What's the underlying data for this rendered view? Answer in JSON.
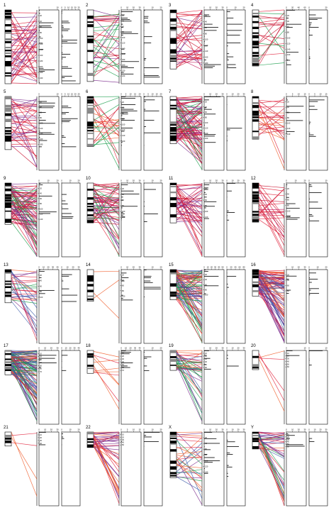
{
  "figure": {
    "panel_labels": [
      "1",
      "2",
      "3",
      "4",
      "5",
      "6",
      "7",
      "8",
      "9",
      "10",
      "11",
      "12",
      "13",
      "14",
      "15",
      "16",
      "17",
      "18",
      "19",
      "20",
      "21",
      "22",
      "X",
      "Y"
    ],
    "colors": {
      "red": "#e0203a",
      "crimson": "#c8102e",
      "orange": "#f05a28",
      "magenta": "#c2185b",
      "purple": "#7b2a8c",
      "green": "#1a9e4b",
      "blue": "#3a5ba9",
      "teal": "#2a9d8f",
      "black": "#000000"
    }
  },
  "chart_data": [
    {
      "panel": "1",
      "type": "line",
      "count_axis_1": [
        "0",
        "10"
      ],
      "count_axis_2": [
        "0",
        "5",
        "10",
        "15",
        "20",
        "25"
      ],
      "pos_ticks": [
        "20",
        "40",
        "60",
        "80",
        "100",
        "120",
        "140",
        "160",
        "180",
        "200",
        "220",
        "240"
      ],
      "links": 50,
      "palette": [
        "red",
        "crimson",
        "magenta",
        "purple"
      ],
      "rel_len": 1.0
    },
    {
      "panel": "2",
      "type": "line",
      "count_axis_1": [
        "0",
        "10",
        "20",
        "30"
      ],
      "count_axis_2": [
        "0",
        "10",
        "20"
      ],
      "pos_ticks": [
        "20",
        "40",
        "60",
        "80",
        "100",
        "120",
        "140",
        "160",
        "180",
        "200",
        "220",
        "240"
      ],
      "links": 35,
      "palette": [
        "red",
        "crimson",
        "green",
        "purple"
      ],
      "rel_len": 0.97
    },
    {
      "panel": "3",
      "type": "line",
      "count_axis_1": [
        "0",
        "10",
        "20",
        "30"
      ],
      "count_axis_2": [
        "0",
        "10",
        "20"
      ],
      "pos_ticks": [
        "20",
        "40",
        "60",
        "80",
        "100",
        "120",
        "140",
        "160",
        "180"
      ],
      "links": 40,
      "palette": [
        "red",
        "magenta",
        "purple",
        "crimson"
      ],
      "rel_len": 0.8
    },
    {
      "panel": "4",
      "type": "line",
      "count_axis_1": [
        "0",
        "20",
        "40",
        "60"
      ],
      "count_axis_2": [
        "0",
        "20"
      ],
      "pos_ticks": [
        "20",
        "40",
        "60",
        "80",
        "100",
        "120",
        "140",
        "160",
        "180"
      ],
      "links": 20,
      "palette": [
        "red",
        "crimson",
        "green"
      ],
      "rel_len": 0.76
    },
    {
      "panel": "5",
      "type": "line",
      "count_axis_1": [
        "0",
        "10"
      ],
      "count_axis_2": [
        "0",
        "5",
        "10",
        "15",
        "20",
        "25"
      ],
      "pos_ticks": [
        "20",
        "40",
        "60",
        "80",
        "100",
        "120",
        "140",
        "160",
        "180"
      ],
      "links": 40,
      "palette": [
        "red",
        "crimson",
        "purple"
      ],
      "rel_len": 0.72
    },
    {
      "panel": "6",
      "type": "line",
      "count_axis_1": [
        "0",
        "5",
        "10",
        "15",
        "20"
      ],
      "count_axis_2": [
        "0",
        "5",
        "10",
        "15",
        "20"
      ],
      "pos_ticks": [
        "20",
        "40",
        "60",
        "80",
        "100",
        "120",
        "140",
        "160"
      ],
      "links": 25,
      "palette": [
        "red",
        "crimson",
        "green",
        "orange"
      ],
      "rel_len": 0.68
    },
    {
      "panel": "7",
      "type": "line",
      "count_axis_1": [
        "0",
        "10",
        "20",
        "30"
      ],
      "count_axis_2": [
        "0",
        "10",
        "20",
        "30"
      ],
      "pos_ticks": [
        "20",
        "40",
        "60",
        "80",
        "100",
        "120",
        "140",
        "160"
      ],
      "links": 90,
      "palette": [
        "red",
        "crimson",
        "magenta",
        "purple",
        "green"
      ],
      "rel_len": 0.64
    },
    {
      "panel": "8",
      "type": "line",
      "count_axis_1": [
        "0",
        "5",
        "10",
        "15"
      ],
      "count_axis_2": [
        "0",
        "5",
        "10",
        "15"
      ],
      "pos_ticks": [
        "20",
        "40",
        "60",
        "80",
        "100",
        "120",
        "140"
      ],
      "links": 25,
      "palette": [
        "red",
        "crimson",
        "orange"
      ],
      "rel_len": 0.58
    },
    {
      "panel": "9",
      "type": "line",
      "count_axis_1": [
        "0",
        "10",
        "20"
      ],
      "count_axis_2": [
        "0",
        "10",
        "20"
      ],
      "pos_ticks": [
        "20",
        "40",
        "60",
        "80",
        "100",
        "120",
        "140"
      ],
      "links": 80,
      "palette": [
        "red",
        "crimson",
        "magenta",
        "purple",
        "green"
      ],
      "rel_len": 0.56
    },
    {
      "panel": "10",
      "type": "line",
      "count_axis_1": [
        "0",
        "10",
        "20",
        "30"
      ],
      "count_axis_2": [
        "0",
        "10",
        "20"
      ],
      "pos_ticks": [
        "20",
        "40",
        "60",
        "80",
        "100",
        "120"
      ],
      "links": 60,
      "palette": [
        "red",
        "crimson",
        "magenta",
        "purple",
        "green"
      ],
      "rel_len": 0.54
    },
    {
      "panel": "11",
      "type": "line",
      "count_axis_1": [
        "0",
        "10",
        "20",
        "30"
      ],
      "count_axis_2": [
        "0",
        "10",
        "20",
        "30"
      ],
      "pos_ticks": [
        "20",
        "40",
        "60",
        "80",
        "100",
        "120"
      ],
      "links": 45,
      "palette": [
        "red",
        "magenta",
        "purple",
        "crimson"
      ],
      "rel_len": 0.54
    },
    {
      "panel": "12",
      "type": "line",
      "count_axis_1": [
        "0",
        "10",
        "20"
      ],
      "count_axis_2": [
        "0",
        "10"
      ],
      "pos_ticks": [
        "20",
        "40",
        "60",
        "80",
        "100",
        "120"
      ],
      "links": 25,
      "palette": [
        "red",
        "crimson",
        "magenta"
      ],
      "rel_len": 0.53
    },
    {
      "panel": "13",
      "type": "line",
      "count_axis_1": [
        "0",
        "10",
        "20",
        "30",
        "40"
      ],
      "count_axis_2": [
        "0",
        "10",
        "20",
        "30"
      ],
      "pos_ticks": [
        "20",
        "40",
        "60",
        "80",
        "100"
      ],
      "links": 30,
      "palette": [
        "orange",
        "red",
        "green",
        "purple",
        "blue"
      ],
      "rel_len": 0.45
    },
    {
      "panel": "14",
      "type": "line",
      "count_axis_1": [
        "0",
        "10",
        "20",
        "30"
      ],
      "count_axis_2": [
        "0",
        "10",
        "20"
      ],
      "pos_ticks": [
        "20",
        "40",
        "60",
        "80",
        "100"
      ],
      "links": 3,
      "palette": [
        "orange",
        "red"
      ],
      "rel_len": 0.43
    },
    {
      "panel": "15",
      "type": "line",
      "count_axis_1": [
        "0",
        "10",
        "20",
        "30",
        "40",
        "50"
      ],
      "count_axis_2": [
        "0",
        "20",
        "40",
        "60",
        "80"
      ],
      "pos_ticks": [
        "20",
        "40",
        "60",
        "80",
        "100"
      ],
      "links": 90,
      "palette": [
        "green",
        "orange",
        "red",
        "purple",
        "blue"
      ],
      "rel_len": 0.41
    },
    {
      "panel": "16",
      "type": "line",
      "count_axis_1": [
        "0",
        "10",
        "20",
        "30"
      ],
      "count_axis_2": [
        "0",
        "10",
        "20"
      ],
      "pos_ticks": [
        "20",
        "40",
        "60",
        "80"
      ],
      "links": 90,
      "palette": [
        "orange",
        "red",
        "purple",
        "blue"
      ],
      "rel_len": 0.36
    },
    {
      "panel": "17",
      "type": "line",
      "count_axis_1": [
        "0",
        "10",
        "20",
        "30"
      ],
      "count_axis_2": [
        "0",
        "10",
        "20",
        "30",
        "40"
      ],
      "pos_ticks": [
        "10",
        "20",
        "30",
        "40",
        "50",
        "60",
        "70"
      ],
      "links": 110,
      "palette": [
        "orange",
        "red",
        "purple",
        "blue",
        "green"
      ],
      "rel_len": 0.33
    },
    {
      "panel": "18",
      "type": "line",
      "count_axis_1": [
        "0",
        "10",
        "20",
        "30",
        "40"
      ],
      "count_axis_2": [
        "0",
        "10",
        "20"
      ],
      "pos_ticks": [
        "10",
        "20",
        "30",
        "40",
        "50",
        "60",
        "70"
      ],
      "links": 10,
      "palette": [
        "orange",
        "red"
      ],
      "rel_len": 0.31
    },
    {
      "panel": "19",
      "type": "line",
      "count_axis_1": [
        "0",
        "10",
        "20",
        "30"
      ],
      "count_axis_2": [
        "0",
        "10",
        "20",
        "30"
      ],
      "pos_ticks": [
        "10",
        "20",
        "30",
        "40",
        "50",
        "60"
      ],
      "links": 40,
      "palette": [
        "orange",
        "red",
        "purple",
        "blue",
        "green"
      ],
      "rel_len": 0.27
    },
    {
      "panel": "20",
      "type": "line",
      "count_axis_1": [
        "0",
        "10"
      ],
      "count_axis_2": [
        "0",
        "10"
      ],
      "pos_ticks": [
        "10",
        "20",
        "30",
        "40",
        "50",
        "60"
      ],
      "links": 5,
      "palette": [
        "orange",
        "red"
      ],
      "rel_len": 0.26
    },
    {
      "panel": "21",
      "type": "line",
      "count_axis_1": [
        "0",
        "10",
        "20",
        "30"
      ],
      "count_axis_2": [
        "0",
        "10",
        "20"
      ],
      "pos_ticks": [
        "10",
        "20",
        "30",
        "40"
      ],
      "links": 4,
      "palette": [
        "orange",
        "red"
      ],
      "rel_len": 0.19
    },
    {
      "panel": "22",
      "type": "line",
      "count_axis_1": [
        "0",
        "5",
        "10",
        "15"
      ],
      "count_axis_2": [
        "0",
        "10",
        "20"
      ],
      "pos_ticks": [
        "10",
        "20",
        "30",
        "40",
        "50"
      ],
      "links": 40,
      "palette": [
        "orange",
        "red",
        "purple"
      ],
      "rel_len": 0.21
    },
    {
      "panel": "X",
      "type": "line",
      "count_axis_1": [
        "0",
        "10",
        "20",
        "30"
      ],
      "count_axis_2": [
        "0",
        "10",
        "20",
        "30"
      ],
      "pos_ticks": [
        "20",
        "40",
        "60",
        "80",
        "100",
        "120",
        "140"
      ],
      "links": 30,
      "palette": [
        "orange",
        "red",
        "green",
        "purple",
        "blue"
      ],
      "rel_len": 0.62
    },
    {
      "panel": "Y",
      "type": "line",
      "count_axis_1": [
        "0",
        "10",
        "20",
        "30"
      ],
      "count_axis_2": [
        "0",
        "10",
        "20",
        "30"
      ],
      "pos_ticks": [
        "10",
        "20",
        "30",
        "40",
        "50",
        "60"
      ],
      "links": 40,
      "palette": [
        "orange",
        "red",
        "green",
        "purple",
        "blue"
      ],
      "rel_len": 0.23
    }
  ]
}
